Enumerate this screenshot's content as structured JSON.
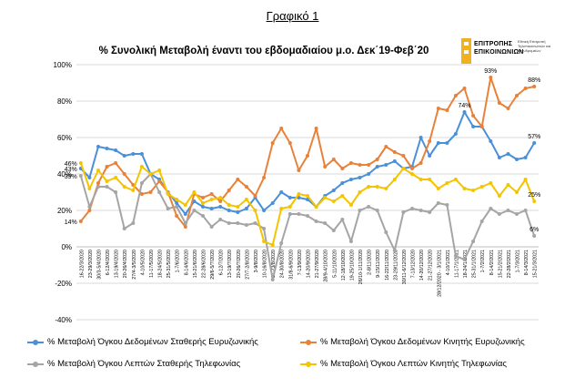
{
  "figure_label": "Γραφικό 1",
  "logo": {
    "name_line1": "ΕΠΙΤΡΟΠΗΣ",
    "name_line2": "ΕΠΙΚΟΙΝΩΝΙΩΝ",
    "small_text": "Εθνική Επιτροπή Τηλεπικοινωνιών και Ταχυδρομείων"
  },
  "chart_data": {
    "type": "line",
    "title": "% Συνολική Μεταβολή έναντι του εβδομαδιαίου μ.ο. Δεκ΄19-Φεβ΄20",
    "xlabel": "",
    "ylabel": "",
    "ylim": [
      -40,
      100
    ],
    "yticks": [
      -40,
      -20,
      0,
      20,
      40,
      60,
      80,
      100
    ],
    "ytick_labels": [
      "-40%",
      "-20%",
      "0%",
      "20%",
      "40%",
      "60%",
      "80%",
      "100%"
    ],
    "grid": true,
    "legend_position": "bottom",
    "categories": [
      "16-22/3/2020",
      "23-29/3/2020",
      "30/3-5/4/2020",
      "6-12/4/2020",
      "13-19/4/2020",
      "20-26/4/2020",
      "27/4-3/5/2020",
      "4-10/5/2020",
      "11-17/5/2020",
      "18-24/5/2020",
      "25-31/5/2020",
      "1-7/6/2020",
      "8-14/6/2020",
      "15-21/6/2020",
      "22-28/6/2020",
      "29/6-5/7/2020",
      "6-12/7/2020",
      "13-19/7/2020",
      "20-26/7/2020",
      "27/7-2/8/2020",
      "3-9/8/2020",
      "10-16/8/2020",
      "17-23/8/2020",
      "24-30/8/2020",
      "31/8-6/9/2020",
      "7-13/9/2020",
      "14-20/9/2020",
      "21-27/9/2020",
      "28/9-4/10/2020",
      "5-11/10/2020",
      "12-18/10/2020",
      "19-25/10/2020",
      "26/10-1/11/2020",
      "2-8/11/2020",
      "9-15/11/2020",
      "16-22/11/2020",
      "23-29/11/2020",
      "30/11-6/12/2020",
      "7-13/12/2020",
      "14-20/12/2020",
      "21-27/12/2020",
      "28/12/2020 - 3/1/2021",
      "4-10/1/2021",
      "11-17/1/2021",
      "18-24/1/2021",
      "25-31/1/2021",
      "1-7/2/2021",
      "8-14/2/2021",
      "15-21/2/2021",
      "22-28/2/2021",
      "1-7/3/2021",
      "8-14/3/2021",
      "15-21/3/2021"
    ],
    "xtick_labels": [
      "16-22/3/2020",
      "23-29/3/2020",
      "30/3-5/4/2020",
      "6-12/4/2020",
      "13-19/4/2020",
      "20-26/4/2020",
      "27/4-3/5/2020",
      "4-10/5/2020",
      "11-17/5/2020",
      "18-24/5/2020",
      "25-31/5/2020",
      "1-7/6/2020",
      "8-14/6/2020",
      "15-21/6/2020",
      "22-28/6/2020",
      "29/6-5/7/2020",
      "6-12/7/2020",
      "13-19/7/2020",
      "20-26/7/2020",
      "27/7-2/8/2020",
      "3-9/8/2020",
      "10-16/8/2020",
      "17-23/8/2020",
      "24-30/8/2020",
      "31/8-6/9/2020",
      "7-13/9/2020",
      "14-20/9/2020",
      "21-27/9/2020",
      "28/9-4/10/2020",
      "5-11/10/2020",
      "12-18/10/2020",
      "19-25/10/2020",
      "26/10-1/11/2020",
      "2-8/11/2020",
      "9-15/11/2020",
      "16-22/11/2020",
      "23-29/11/2020",
      "30/11-6/12/2020",
      "7-13/12/2020",
      "14-20/12/2020",
      "21-27/12/2020",
      "28/12/2020 - 3/1/2021",
      "4-10/1/2021",
      "11-17/1/2021",
      "18-24/1/2021",
      "25-31/1/2021",
      "1-7/2/2021",
      "8-14/2/2021",
      "15-21/2/2021",
      "22-28/2/2021",
      "1-7/3/2021",
      "8-14/3/2021",
      "15-21/3/2021"
    ],
    "series": [
      {
        "name": "% Μεταβολή Όγκου Δεδομένων Σταθερής Ευρυζωνικής",
        "color": "#4a90d9",
        "marker": true,
        "values": [
          43,
          38,
          55,
          54,
          53,
          50,
          51,
          51,
          40,
          37,
          30,
          24,
          18,
          25,
          22,
          21,
          22,
          20,
          19,
          21,
          27,
          20,
          24,
          30,
          27,
          27,
          26,
          22,
          28,
          31,
          35,
          37,
          38,
          40,
          44,
          45,
          47,
          43,
          44,
          60,
          50,
          57,
          57,
          62,
          74,
          66,
          66,
          58,
          49,
          51,
          48,
          49,
          57
        ],
        "point_labels": {
          "0": "43%",
          "44": "74%",
          "52": "57%"
        }
      },
      {
        "name": "% Μεταβολή Όγκου Δεδομένων Κινητής Ευρυζωνικής",
        "color": "#e8823a",
        "marker": true,
        "values": [
          14,
          20,
          35,
          44,
          46,
          40,
          34,
          29,
          30,
          36,
          30,
          17,
          11,
          29,
          27,
          29,
          25,
          31,
          37,
          33,
          28,
          38,
          57,
          65,
          57,
          42,
          50,
          65,
          44,
          48,
          43,
          46,
          45,
          45,
          48,
          55,
          52,
          50,
          43,
          46,
          58,
          76,
          75,
          83,
          87,
          72,
          66,
          93,
          79,
          76,
          83,
          87,
          88
        ],
        "point_labels": {
          "0": "14%",
          "47": "93%",
          "52": "88%"
        }
      },
      {
        "name": "% Μεταβολή Όγκου Λεπτών Σταθερής Τηλεφωνίας",
        "color": "#a5a5a5",
        "marker": true,
        "values": [
          39,
          22,
          33,
          33,
          30,
          10,
          13,
          35,
          40,
          30,
          21,
          22,
          13,
          20,
          17,
          11,
          15,
          13,
          13,
          12,
          13,
          10,
          -18,
          2,
          18,
          18,
          17,
          14,
          13,
          9,
          15,
          3,
          20,
          22,
          20,
          8,
          -2,
          19,
          21,
          20,
          19,
          24,
          23,
          -5,
          -7,
          3,
          14,
          21,
          18,
          20,
          18,
          20,
          6
        ],
        "point_labels": {
          "0": "39%",
          "52": "6%"
        }
      },
      {
        "name": "% Μεταβολή Όγκου Λεπτών Κινητής Τηλεφωνίας",
        "color": "#f5c400",
        "marker": true,
        "values": [
          46,
          32,
          42,
          36,
          38,
          33,
          31,
          44,
          40,
          42,
          29,
          26,
          23,
          30,
          24,
          26,
          27,
          23,
          22,
          26,
          20,
          3,
          1,
          21,
          22,
          29,
          28,
          22,
          27,
          25,
          28,
          23,
          30,
          33,
          33,
          32,
          37,
          43,
          40,
          37,
          37,
          32,
          35,
          37,
          32,
          31,
          33,
          35,
          28,
          34,
          30,
          37,
          25
        ],
        "point_labels": {
          "0": "46%",
          "52": "25%"
        }
      }
    ]
  }
}
